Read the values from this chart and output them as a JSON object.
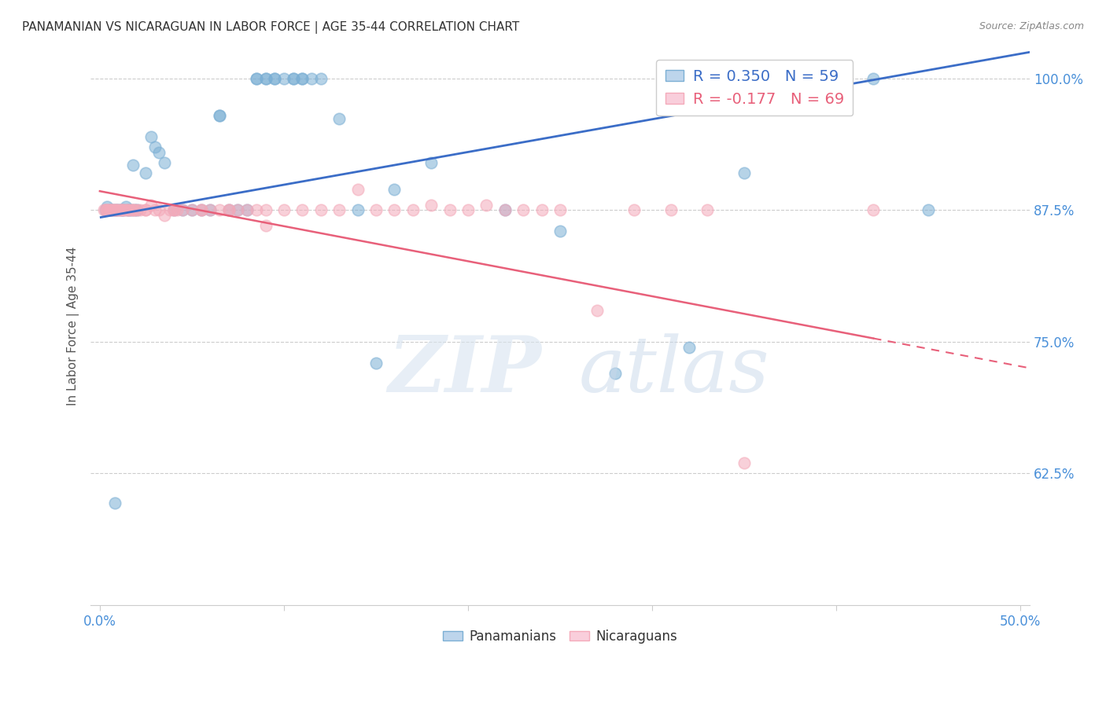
{
  "title": "PANAMANIAN VS NICARAGUAN IN LABOR FORCE | AGE 35-44 CORRELATION CHART",
  "source": "Source: ZipAtlas.com",
  "ylabel": "In Labor Force | Age 35-44",
  "legend_label1": "Panamanians",
  "legend_label2": "Nicaraguans",
  "R1": 0.35,
  "N1": 59,
  "R2": -0.177,
  "N2": 69,
  "xlim": [
    -0.005,
    0.505
  ],
  "ylim": [
    0.5,
    1.03
  ],
  "yticks": [
    0.625,
    0.75,
    0.875,
    1.0
  ],
  "ytick_labels": [
    "62.5%",
    "75.0%",
    "87.5%",
    "100.0%"
  ],
  "xtick_positions": [
    0.0,
    0.1,
    0.2,
    0.3,
    0.4,
    0.5
  ],
  "color_blue": "#7BAFD4",
  "color_pink": "#F4AABA",
  "color_blue_line": "#3B6DC7",
  "color_pink_line": "#E8607A",
  "color_ytick": "#4A90D9",
  "color_xtick": "#4A90D9",
  "background": "#FFFFFF",
  "blue_line_x0": 0.0,
  "blue_line_y0": 0.868,
  "blue_line_x1": 0.505,
  "blue_line_y1": 1.025,
  "pink_line_x0": 0.0,
  "pink_line_y0": 0.893,
  "pink_line_x1": 0.505,
  "pink_line_y1": 0.725,
  "blue_x": [
    0.003,
    0.004,
    0.005,
    0.006,
    0.007,
    0.008,
    0.009,
    0.01,
    0.011,
    0.012,
    0.013,
    0.014,
    0.015,
    0.016,
    0.017,
    0.018,
    0.019,
    0.02,
    0.025,
    0.028,
    0.03,
    0.032,
    0.035,
    0.04,
    0.045,
    0.05,
    0.055,
    0.06,
    0.065,
    0.07,
    0.075,
    0.08,
    0.085,
    0.09,
    0.095,
    0.1,
    0.105,
    0.11,
    0.115,
    0.12,
    0.13,
    0.14,
    0.15,
    0.16,
    0.18,
    0.22,
    0.25,
    0.28,
    0.32,
    0.35,
    0.42,
    0.45,
    0.008,
    0.065,
    0.085,
    0.09,
    0.095,
    0.105,
    0.11
  ],
  "blue_y": [
    0.875,
    0.878,
    0.875,
    0.875,
    0.875,
    0.597,
    0.875,
    0.875,
    0.875,
    0.875,
    0.875,
    0.878,
    0.875,
    0.875,
    0.875,
    0.918,
    0.875,
    0.875,
    0.91,
    0.945,
    0.935,
    0.93,
    0.92,
    0.875,
    0.875,
    0.875,
    0.875,
    0.875,
    0.965,
    0.875,
    0.875,
    0.875,
    1.0,
    1.0,
    1.0,
    1.0,
    1.0,
    1.0,
    1.0,
    1.0,
    0.962,
    0.875,
    0.73,
    0.895,
    0.92,
    0.875,
    0.855,
    0.72,
    0.745,
    0.91,
    1.0,
    0.875,
    0.875,
    0.965,
    1.0,
    1.0,
    1.0,
    1.0,
    1.0
  ],
  "pink_x": [
    0.002,
    0.003,
    0.004,
    0.005,
    0.006,
    0.007,
    0.008,
    0.009,
    0.01,
    0.011,
    0.012,
    0.013,
    0.014,
    0.015,
    0.016,
    0.017,
    0.018,
    0.019,
    0.02,
    0.022,
    0.025,
    0.028,
    0.03,
    0.032,
    0.035,
    0.038,
    0.04,
    0.042,
    0.045,
    0.05,
    0.055,
    0.06,
    0.065,
    0.07,
    0.075,
    0.08,
    0.085,
    0.09,
    0.1,
    0.11,
    0.12,
    0.13,
    0.14,
    0.15,
    0.16,
    0.17,
    0.18,
    0.19,
    0.2,
    0.21,
    0.22,
    0.23,
    0.24,
    0.25,
    0.27,
    0.29,
    0.31,
    0.33,
    0.35,
    0.42,
    0.004,
    0.006,
    0.008,
    0.012,
    0.025,
    0.04,
    0.055,
    0.07,
    0.09
  ],
  "pink_y": [
    0.875,
    0.875,
    0.875,
    0.875,
    0.875,
    0.875,
    0.875,
    0.875,
    0.875,
    0.875,
    0.875,
    0.875,
    0.875,
    0.875,
    0.875,
    0.875,
    0.875,
    0.875,
    0.875,
    0.875,
    0.875,
    0.88,
    0.875,
    0.875,
    0.87,
    0.875,
    0.875,
    0.875,
    0.875,
    0.875,
    0.875,
    0.875,
    0.875,
    0.875,
    0.875,
    0.875,
    0.875,
    0.875,
    0.875,
    0.875,
    0.875,
    0.875,
    0.895,
    0.875,
    0.875,
    0.875,
    0.88,
    0.875,
    0.875,
    0.88,
    0.875,
    0.875,
    0.875,
    0.875,
    0.78,
    0.875,
    0.875,
    0.875,
    0.635,
    0.875,
    0.875,
    0.875,
    0.875,
    0.875,
    0.875,
    0.875,
    0.875,
    0.875,
    0.86
  ]
}
